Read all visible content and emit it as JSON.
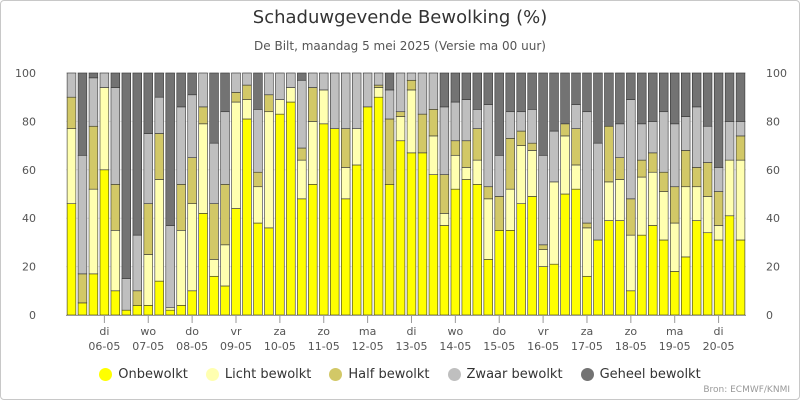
{
  "chart_data": {
    "type": "bar",
    "stacked": true,
    "title": "Schaduwgevende Bewolking (%)",
    "subtitle": "De Bilt, maandag 5 mei 2025 (Versie ma 00 uur)",
    "ylim": [
      0,
      100
    ],
    "yticks": [
      0,
      20,
      40,
      60,
      80,
      100
    ],
    "grid": true,
    "legend_position": "bottom",
    "x_day_ticks": [
      {
        "label": "di",
        "date": "06-05",
        "index": 3
      },
      {
        "label": "wo",
        "date": "07-05",
        "index": 7
      },
      {
        "label": "do",
        "date": "08-05",
        "index": 11
      },
      {
        "label": "vr",
        "date": "09-05",
        "index": 15
      },
      {
        "label": "za",
        "date": "10-05",
        "index": 19
      },
      {
        "label": "zo",
        "date": "11-05",
        "index": 23
      },
      {
        "label": "ma",
        "date": "12-05",
        "index": 27
      },
      {
        "label": "di",
        "date": "13-05",
        "index": 31
      },
      {
        "label": "wo",
        "date": "14-05",
        "index": 35
      },
      {
        "label": "do",
        "date": "15-05",
        "index": 39
      },
      {
        "label": "vr",
        "date": "16-05",
        "index": 43
      },
      {
        "label": "za",
        "date": "17-05",
        "index": 47
      },
      {
        "label": "zo",
        "date": "18-05",
        "index": 51
      },
      {
        "label": "ma",
        "date": "19-05",
        "index": 55
      },
      {
        "label": "di",
        "date": "20-05",
        "index": 59
      }
    ],
    "series": [
      {
        "name": "Onbewolkt",
        "color": "#ffff00",
        "values": [
          46,
          5,
          17,
          60,
          10,
          2,
          4,
          4,
          14,
          2,
          4,
          10,
          42,
          16,
          12,
          44,
          81,
          38,
          36,
          83,
          88,
          48,
          54,
          79,
          77,
          48,
          62,
          86,
          90,
          54,
          72,
          67,
          67,
          58,
          37,
          52,
          56,
          54,
          23,
          35,
          35,
          46,
          49,
          20,
          21,
          50,
          52,
          16,
          31,
          39,
          39,
          10,
          33,
          37,
          31,
          18,
          24,
          39,
          34,
          31,
          41,
          31
        ]
      },
      {
        "name": "Licht bewolkt",
        "color": "#ffffb0",
        "values": [
          31,
          0,
          35,
          34,
          25,
          0,
          0,
          21,
          42,
          1,
          31,
          36,
          37,
          7,
          17,
          44,
          8,
          15,
          48,
          6,
          6,
          16,
          26,
          14,
          0,
          13,
          15,
          0,
          4,
          0,
          10,
          26,
          0,
          16,
          5,
          14,
          5,
          10,
          25,
          0,
          17,
          24,
          19,
          7,
          34,
          24,
          10,
          20,
          0,
          16,
          17,
          23,
          24,
          22,
          20,
          20,
          29,
          14,
          15,
          6,
          23,
          33
        ]
      },
      {
        "name": "Half bewolkt",
        "color": "#d2c867",
        "values": [
          13,
          12,
          26,
          0,
          19,
          0,
          6,
          21,
          19,
          0,
          19,
          19,
          7,
          23,
          25,
          4,
          6,
          6,
          7,
          0,
          0,
          5,
          14,
          0,
          0,
          16,
          0,
          0,
          1,
          27,
          2,
          4,
          16,
          11,
          16,
          6,
          11,
          13,
          5,
          14,
          21,
          6,
          3,
          2,
          0,
          5,
          15,
          2,
          0,
          23,
          9,
          15,
          7,
          8,
          8,
          15,
          15,
          8,
          14,
          14,
          0,
          10
        ]
      },
      {
        "name": "Zwaar bewolkt",
        "color": "#bfbfbf",
        "values": [
          10,
          49,
          20,
          6,
          40,
          13,
          23,
          29,
          15,
          34,
          32,
          26,
          14,
          25,
          30,
          8,
          5,
          26,
          9,
          11,
          6,
          28,
          6,
          7,
          23,
          23,
          23,
          14,
          5,
          12,
          16,
          3,
          17,
          15,
          28,
          16,
          17,
          8,
          34,
          17,
          11,
          8,
          14,
          37,
          21,
          0,
          10,
          46,
          40,
          0,
          14,
          41,
          15,
          13,
          25,
          26,
          14,
          25,
          15,
          10,
          16,
          6
        ]
      },
      {
        "name": "Geheel bewolkt",
        "color": "#737373",
        "values": [
          0,
          34,
          2,
          0,
          6,
          85,
          67,
          25,
          10,
          63,
          14,
          9,
          0,
          29,
          16,
          0,
          0,
          15,
          0,
          0,
          0,
          3,
          0,
          0,
          0,
          0,
          0,
          0,
          0,
          7,
          0,
          0,
          0,
          0,
          14,
          12,
          11,
          15,
          13,
          34,
          16,
          16,
          15,
          34,
          24,
          21,
          13,
          16,
          29,
          22,
          21,
          11,
          21,
          20,
          16,
          21,
          18,
          14,
          22,
          39,
          20,
          20
        ]
      }
    ]
  },
  "credits": "Bron: ECMWF/KNMI"
}
